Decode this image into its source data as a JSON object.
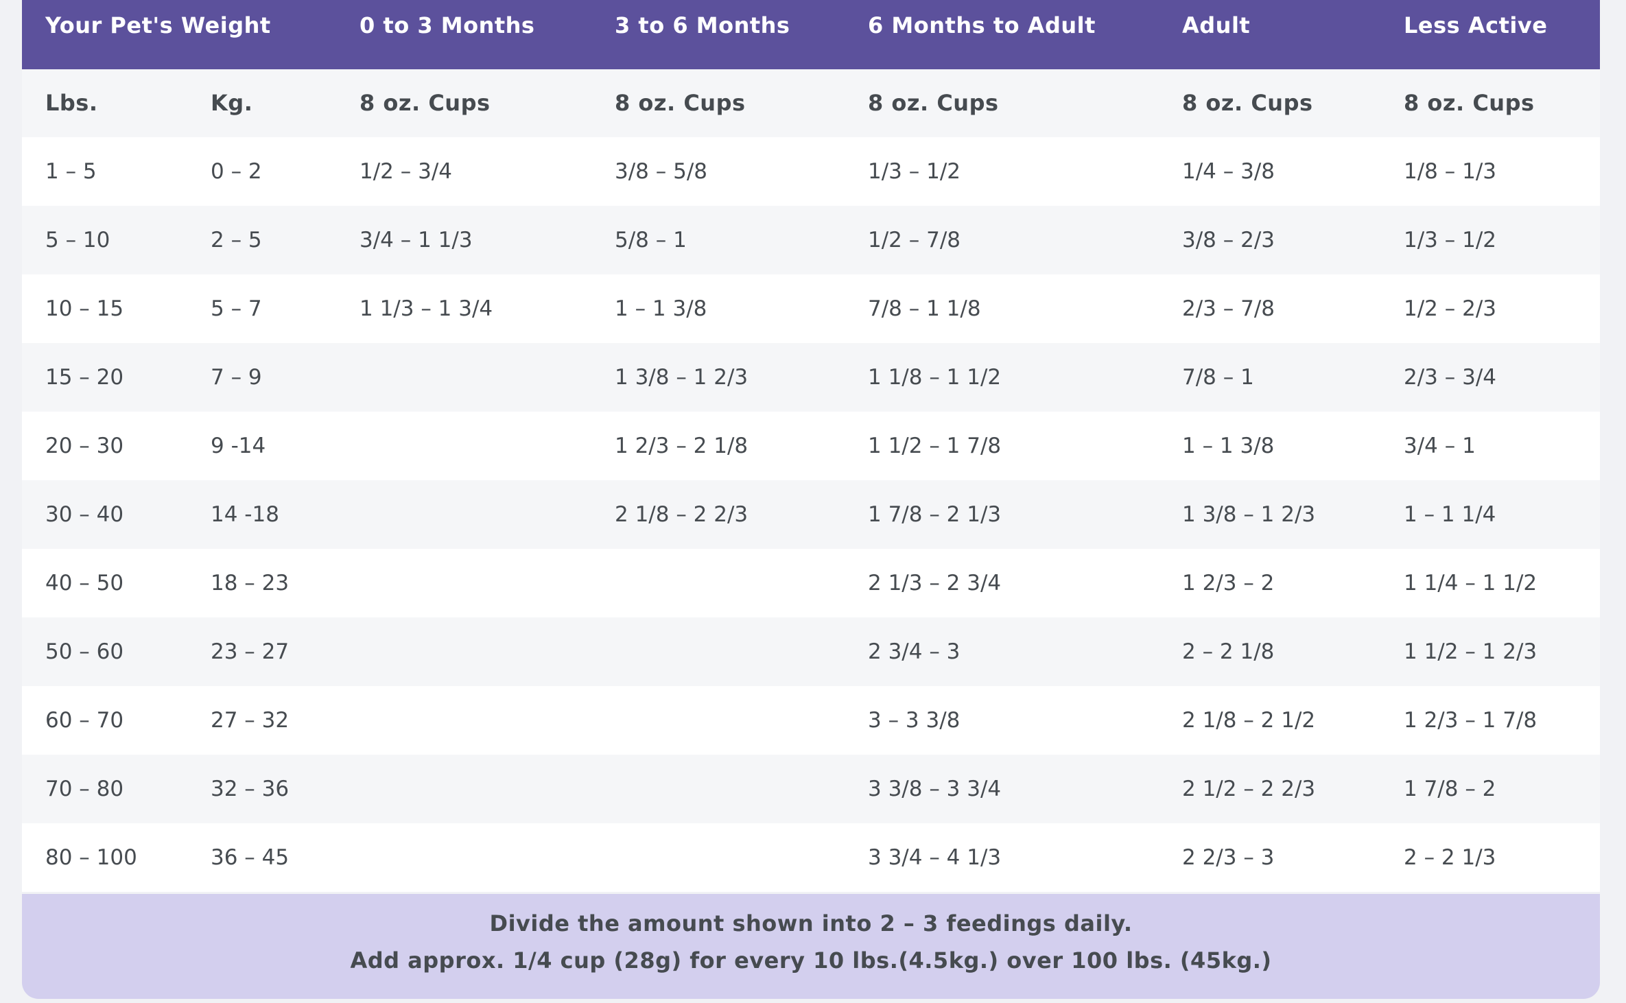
{
  "header": [
    "Your Pet's Weight",
    "0 to 3 Months",
    "3 to 6 Months",
    "6 Months to Adult",
    "Adult",
    "Less Active"
  ],
  "subheader": [
    "Lbs.",
    "Kg.",
    "8 oz. Cups",
    "8 oz. Cups",
    "8 oz. Cups",
    "8 oz. Cups",
    "8 oz. Cups"
  ],
  "rows": [
    [
      "1 – 5",
      "0 – 2",
      "1/2 – 3/4",
      "3/8 – 5/8",
      "1/3 – 1/2",
      "1/4 – 3/8",
      "1/8 – 1/3"
    ],
    [
      "5 – 10",
      "2 – 5",
      "3/4 – 1 1/3",
      "5/8 – 1",
      "1/2 – 7/8",
      "3/8 – 2/3",
      "1/3 – 1/2"
    ],
    [
      "10 – 15",
      "5 – 7",
      "1 1/3 – 1 3/4",
      "1 – 1 3/8",
      "7/8 – 1 1/8",
      "2/3 – 7/8",
      "1/2 – 2/3"
    ],
    [
      "15 – 20",
      "7 – 9",
      "",
      "1 3/8 – 1 2/3",
      "1 1/8 – 1 1/2",
      "7/8 – 1",
      "2/3 – 3/4"
    ],
    [
      "20 – 30",
      "9 -14",
      "",
      "1 2/3 – 2 1/8",
      "1 1/2 – 1 7/8",
      "1 – 1 3/8",
      "3/4 – 1"
    ],
    [
      "30 – 40",
      "14 -18",
      "",
      "2 1/8 – 2 2/3",
      "1 7/8 – 2 1/3",
      "1 3/8 – 1 2/3",
      "1 – 1 1/4"
    ],
    [
      "40 – 50",
      "18 – 23",
      "",
      "",
      "2 1/3 – 2 3/4",
      "1 2/3 – 2",
      "1 1/4 – 1 1/2"
    ],
    [
      "50 – 60",
      "23 – 27",
      "",
      "",
      "2 3/4 – 3",
      "2 – 2 1/8",
      "1 1/2 – 1 2/3"
    ],
    [
      "60 – 70",
      "27 – 32",
      "",
      "",
      "3 – 3 3/8",
      "2 1/8 – 2 1/2",
      "1 2/3 – 1 7/8"
    ],
    [
      "70 – 80",
      "32 – 36",
      "",
      "",
      "3 3/8 – 3 3/4",
      "2 1/2 – 2 2/3",
      "1 7/8 – 2"
    ],
    [
      "80 – 100",
      "36 – 45",
      "",
      "",
      "3 3/4 – 4 1/3",
      "2 2/3 – 3",
      "2 – 2 1/3"
    ]
  ],
  "footer": {
    "line1": "Divide the amount shown into 2 – 3 feedings daily.",
    "line2": "Add approx. 1/4 cup (28g) for every 10 lbs.(4.5kg.) over 100 lbs. (45kg.)"
  },
  "colors": {
    "header_bg": "#5c519c",
    "footer_bg": "#d3cfee",
    "stripe": "#f5f6f8",
    "text": "#464b50"
  }
}
